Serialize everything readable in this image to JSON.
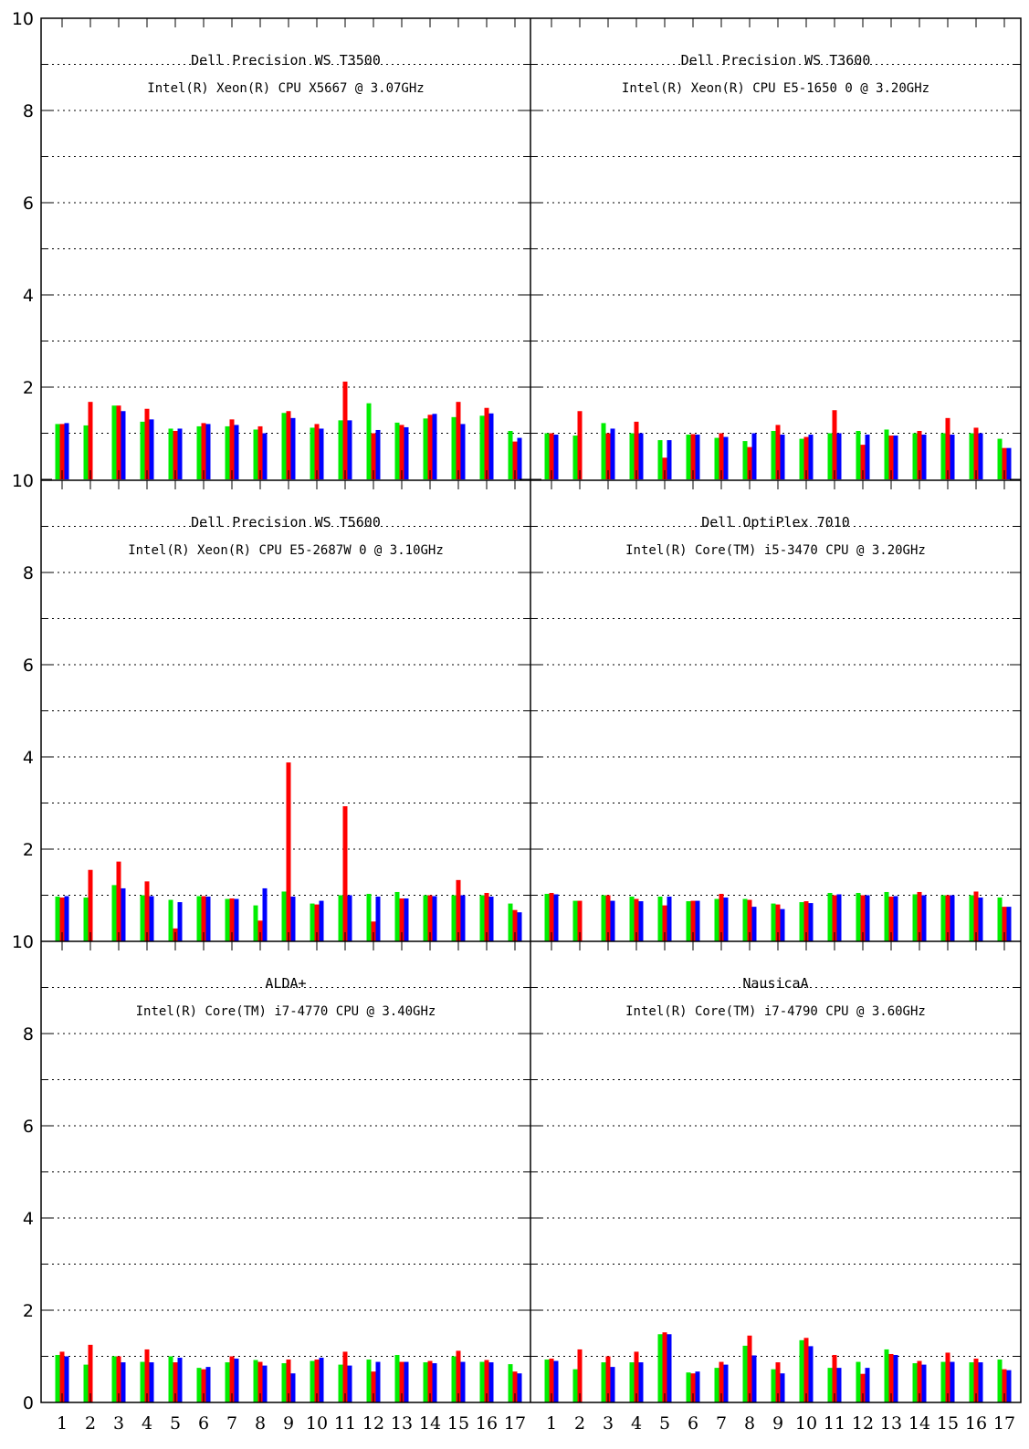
{
  "colors": {
    "green": "#00ee00",
    "red": "#ff0000",
    "blue": "#0000ff",
    "axis": "#000000"
  },
  "axis": {
    "ylim": [
      0,
      10
    ],
    "ytick_labels": [
      "0",
      "2",
      "4",
      "6",
      "8",
      "10"
    ],
    "xtick_labels": [
      "1",
      "2",
      "3",
      "4",
      "5",
      "6",
      "7",
      "8",
      "9",
      "10",
      "11",
      "12",
      "13",
      "14",
      "15",
      "16",
      "17"
    ]
  },
  "chart_data": [
    {
      "type": "bar",
      "title": "Dell Precision WS T3500",
      "subtitle": "Intel(R) Xeon(R) CPU X5667 @ 3.07GHz",
      "categories": [
        "1",
        "2",
        "3",
        "4",
        "5",
        "6",
        "7",
        "8",
        "9",
        "10",
        "11",
        "12",
        "13",
        "14",
        "15",
        "16",
        "17"
      ],
      "ylim": [
        0,
        10
      ],
      "grid": "dotted-horizontal",
      "series": [
        {
          "color": "green",
          "values": [
            1.2,
            1.17,
            1.6,
            1.25,
            1.1,
            1.15,
            1.15,
            1.08,
            1.44,
            1.12,
            1.28,
            1.65,
            1.23,
            1.32,
            1.35,
            1.38,
            1.05
          ]
        },
        {
          "color": "red",
          "values": [
            1.2,
            1.68,
            1.6,
            1.53,
            1.05,
            1.22,
            1.3,
            1.15,
            1.48,
            1.2,
            2.12,
            1.0,
            1.18,
            1.4,
            1.68,
            1.55,
            0.82
          ]
        },
        {
          "color": "blue",
          "values": [
            1.22,
            0,
            1.48,
            1.3,
            1.1,
            1.2,
            1.18,
            1.0,
            1.33,
            1.1,
            1.28,
            1.07,
            1.13,
            1.42,
            1.2,
            1.43,
            0.9
          ]
        }
      ]
    },
    {
      "type": "bar",
      "title": "Dell Precision WS T3600",
      "subtitle": "Intel(R) Xeon(R) CPU E5-1650 0 @ 3.20GHz",
      "categories": [
        "1",
        "2",
        "3",
        "4",
        "5",
        "6",
        "7",
        "8",
        "9",
        "10",
        "11",
        "12",
        "13",
        "14",
        "15",
        "16",
        "17"
      ],
      "ylim": [
        0,
        10
      ],
      "grid": "dotted-horizontal",
      "series": [
        {
          "color": "green",
          "values": [
            1.0,
            0.95,
            1.22,
            1.0,
            0.85,
            0.97,
            0.9,
            0.83,
            1.05,
            0.88,
            1.0,
            1.05,
            1.08,
            1.0,
            1.0,
            1.0,
            0.88
          ]
        },
        {
          "color": "red",
          "values": [
            1.0,
            1.48,
            1.0,
            1.25,
            0.47,
            0.98,
            1.0,
            0.7,
            1.18,
            0.92,
            1.5,
            0.75,
            0.95,
            1.05,
            1.33,
            1.12,
            0.68
          ]
        },
        {
          "color": "blue",
          "values": [
            0.97,
            0,
            1.1,
            1.0,
            0.85,
            0.97,
            0.92,
            1.0,
            0.97,
            0.97,
            1.0,
            0.97,
            0.95,
            0.97,
            0.97,
            1.0,
            0.68
          ]
        }
      ]
    },
    {
      "type": "bar",
      "title": "Dell Precision WS T5600",
      "subtitle": "Intel(R) Xeon(R) CPU E5-2687W 0 @ 3.10GHz",
      "categories": [
        "1",
        "2",
        "3",
        "4",
        "5",
        "6",
        "7",
        "8",
        "9",
        "10",
        "11",
        "12",
        "13",
        "14",
        "15",
        "16",
        "17"
      ],
      "ylim": [
        0,
        10
      ],
      "grid": "dotted-horizontal",
      "series": [
        {
          "color": "green",
          "values": [
            0.97,
            0.95,
            1.22,
            1.0,
            0.9,
            0.98,
            0.92,
            0.78,
            1.08,
            0.82,
            1.0,
            1.03,
            1.07,
            1.0,
            1.0,
            1.0,
            0.82
          ]
        },
        {
          "color": "red",
          "values": [
            0.95,
            1.55,
            1.73,
            1.3,
            0.28,
            0.98,
            0.93,
            0.45,
            3.88,
            0.8,
            2.93,
            0.43,
            0.93,
            1.0,
            1.33,
            1.05,
            0.68
          ]
        },
        {
          "color": "blue",
          "values": [
            0.98,
            0,
            1.15,
            0.98,
            0.85,
            0.97,
            0.92,
            1.15,
            0.97,
            0.88,
            1.0,
            0.97,
            0.93,
            0.98,
            1.0,
            0.97,
            0.63
          ]
        }
      ]
    },
    {
      "type": "bar",
      "title": "Dell OptiPlex 7010",
      "subtitle": "Intel(R) Core(TM) i5-3470 CPU @ 3.20GHz",
      "categories": [
        "1",
        "2",
        "3",
        "4",
        "5",
        "6",
        "7",
        "8",
        "9",
        "10",
        "11",
        "12",
        "13",
        "14",
        "15",
        "16",
        "17"
      ],
      "ylim": [
        0,
        10
      ],
      "grid": "dotted-horizontal",
      "series": [
        {
          "color": "green",
          "values": [
            1.03,
            0.88,
            1.0,
            0.97,
            0.97,
            0.87,
            0.92,
            0.92,
            0.82,
            0.85,
            1.05,
            1.05,
            1.07,
            1.02,
            1.0,
            1.0,
            0.95
          ]
        },
        {
          "color": "red",
          "values": [
            1.05,
            0.88,
            1.0,
            0.92,
            0.78,
            0.88,
            1.03,
            0.9,
            0.8,
            0.87,
            1.0,
            1.0,
            0.97,
            1.07,
            1.0,
            1.08,
            0.75
          ]
        },
        {
          "color": "blue",
          "values": [
            1.02,
            0,
            0.88,
            0.87,
            0.97,
            0.88,
            0.95,
            0.75,
            0.7,
            0.83,
            1.02,
            1.0,
            0.98,
            1.0,
            1.0,
            0.95,
            0.75
          ]
        }
      ]
    },
    {
      "type": "bar",
      "title": "ALDA+",
      "subtitle": "Intel(R) Core(TM) i7-4770 CPU @ 3.40GHz",
      "categories": [
        "1",
        "2",
        "3",
        "4",
        "5",
        "6",
        "7",
        "8",
        "9",
        "10",
        "11",
        "12",
        "13",
        "14",
        "15",
        "16",
        "17"
      ],
      "ylim": [
        0,
        10
      ],
      "grid": "dotted-horizontal",
      "series": [
        {
          "color": "green",
          "values": [
            1.03,
            0.82,
            1.0,
            0.88,
            1.0,
            0.75,
            0.87,
            0.92,
            0.85,
            0.9,
            0.82,
            0.93,
            1.03,
            0.87,
            1.0,
            0.88,
            0.83
          ]
        },
        {
          "color": "red",
          "values": [
            1.1,
            1.25,
            1.0,
            1.15,
            0.87,
            0.72,
            1.0,
            0.88,
            0.93,
            0.93,
            1.1,
            0.67,
            0.88,
            0.9,
            1.12,
            0.92,
            0.67
          ]
        },
        {
          "color": "blue",
          "values": [
            1.0,
            0,
            0.87,
            0.87,
            0.97,
            0.77,
            0.95,
            0.8,
            0.63,
            0.97,
            0.8,
            0.88,
            0.88,
            0.85,
            0.88,
            0.87,
            0.63
          ]
        }
      ]
    },
    {
      "type": "bar",
      "title": "NausicaA",
      "subtitle": "Intel(R) Core(TM) i7-4790 CPU @ 3.60GHz",
      "categories": [
        "1",
        "2",
        "3",
        "4",
        "5",
        "6",
        "7",
        "8",
        "9",
        "10",
        "11",
        "12",
        "13",
        "14",
        "15",
        "16",
        "17"
      ],
      "ylim": [
        0,
        10
      ],
      "grid": "dotted-horizontal",
      "series": [
        {
          "color": "green",
          "values": [
            0.93,
            0.72,
            0.87,
            0.87,
            1.48,
            0.65,
            0.75,
            1.23,
            0.72,
            1.35,
            0.75,
            0.88,
            1.15,
            0.85,
            0.88,
            0.87,
            0.93
          ]
        },
        {
          "color": "red",
          "values": [
            0.95,
            1.15,
            1.0,
            1.1,
            1.52,
            0.63,
            0.88,
            1.45,
            0.87,
            1.4,
            1.03,
            0.62,
            1.05,
            0.9,
            1.08,
            0.95,
            0.72
          ]
        },
        {
          "color": "blue",
          "values": [
            0.9,
            0,
            0.77,
            0.87,
            1.48,
            0.67,
            0.82,
            1.02,
            0.63,
            1.22,
            0.75,
            0.75,
            1.03,
            0.82,
            0.88,
            0.87,
            0.7
          ]
        }
      ]
    }
  ]
}
